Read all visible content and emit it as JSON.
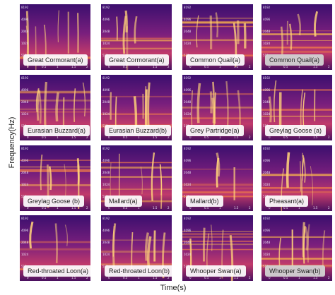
{
  "figure": {
    "y_axis_label": "Frequency(Hz)",
    "x_axis_label": "Time(s)",
    "freq_ticks": [
      "8192",
      "4096",
      "2048",
      "1024",
      "512"
    ],
    "time_ticks": [
      "0",
      "0.5",
      "1",
      "1.5",
      "2"
    ]
  },
  "panels": [
    {
      "label": "Great Cormorant(a)"
    },
    {
      "label": "Great Cormorant(a)"
    },
    {
      "label": "Common Quail(a)"
    },
    {
      "label": "Common Quail(a)"
    },
    {
      "label": "Eurasian Buzzard(a)"
    },
    {
      "label": "Eurasian Buzzard(b)"
    },
    {
      "label": "Grey Partridge(a)"
    },
    {
      "label": "Greylag Goose (a)"
    },
    {
      "label": "Greylag Goose (b)"
    },
    {
      "label": "Mallard(a)"
    },
    {
      "label": "Mallard(b)"
    },
    {
      "label": "Pheasant(a)"
    },
    {
      "label": "Red-throated Loon(a)"
    },
    {
      "label": "Red-throated Loon(b)"
    },
    {
      "label": "Whooper Swan(a)"
    },
    {
      "label": "Whooper Swan(b)"
    }
  ]
}
